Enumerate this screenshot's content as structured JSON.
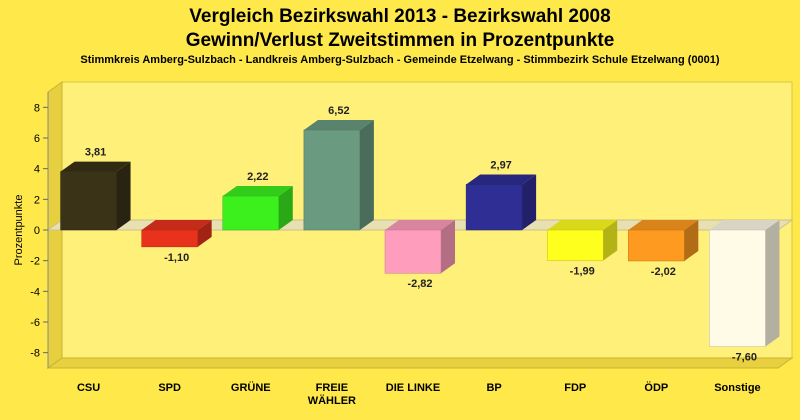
{
  "title": "Vergleich Bezirkswahl 2013 - Bezirkswahl 2008",
  "subtitle": "Gewinn/Verlust Zweitstimmen in Prozentpunkte",
  "caption": "Stimmkreis Amberg-Sulzbach - Landkreis Amberg-Sulzbach - Gemeinde Etzelwang - Stimmbezirk Schule Etzelwang (0001)",
  "chart_data": {
    "type": "bar",
    "ylabel": "Prozentpunkte",
    "xlabel": "",
    "ylim": [
      -9,
      9
    ],
    "yticks": [
      8,
      6,
      4,
      2,
      0,
      -2,
      -4,
      -6,
      -8
    ],
    "ytick_labels": [
      "8",
      "6",
      "4",
      "2",
      "0",
      "-2",
      "-4",
      "-6",
      "-8"
    ],
    "grid": false,
    "categories": [
      "CSU",
      "SPD",
      "GRÜNE",
      "FREIE\nWÄHLER",
      "DIE LINKE",
      "BP",
      "FDP",
      "ÖDP",
      "Sonstige"
    ],
    "values": [
      3.81,
      -1.1,
      2.22,
      6.52,
      -2.82,
      2.97,
      -1.99,
      -2.02,
      -7.6
    ],
    "value_labels": [
      "3,81",
      "-1,10",
      "2,22",
      "6,52",
      "-2,82",
      "2,97",
      "-1,99",
      "-2,02",
      "-7,60"
    ],
    "colors": [
      "#3b3318",
      "#e8321c",
      "#3cf01e",
      "#6a9a80",
      "#ff9dbc",
      "#2f2e94",
      "#ffff1e",
      "#ff9a20",
      "#fffbe6"
    ]
  }
}
